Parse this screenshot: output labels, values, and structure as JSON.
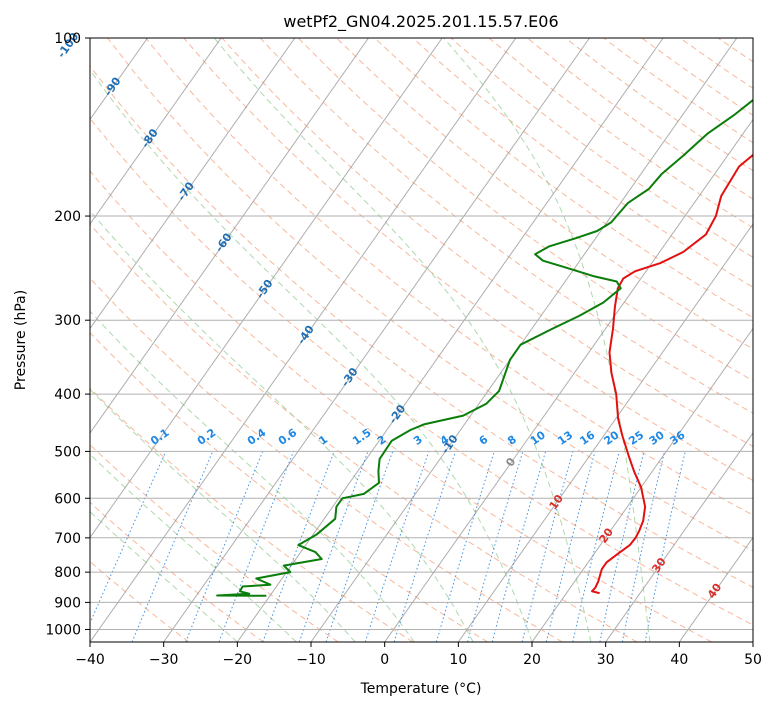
{
  "chart_data": {
    "type": "line",
    "title": "wetPf2_GN04.2025.201.15.57.E06",
    "xlabel": "Temperature (°C)",
    "ylabel": "Pressure (hPa)",
    "xlim": [
      -40,
      50
    ],
    "ylim": [
      1050,
      100
    ],
    "y_scale": "log",
    "grid": true,
    "x_ticks": [
      -40,
      -30,
      -20,
      -10,
      0,
      10,
      20,
      30,
      40,
      50
    ],
    "y_ticks": [
      100,
      200,
      300,
      400,
      500,
      600,
      700,
      800,
      900,
      1000
    ],
    "series": [
      {
        "id": "temperature",
        "color": "#e31010",
        "points": [
          [
            24.5,
            868
          ],
          [
            23.3,
            862
          ],
          [
            23.4,
            850
          ],
          [
            23.2,
            830
          ],
          [
            22.5,
            790
          ],
          [
            22.5,
            770
          ],
          [
            23.2,
            745
          ],
          [
            24,
            720
          ],
          [
            24.1,
            700
          ],
          [
            23.9,
            680
          ],
          [
            23.5,
            655
          ],
          [
            22.4,
            620
          ],
          [
            20,
            575
          ],
          [
            17.5,
            540
          ],
          [
            15.4,
            510
          ],
          [
            12.5,
            470
          ],
          [
            10.3,
            440
          ],
          [
            7.7,
            400
          ],
          [
            5,
            368
          ],
          [
            2.8,
            340
          ],
          [
            1,
            310
          ],
          [
            -0.8,
            285
          ],
          [
            -2.2,
            265
          ],
          [
            -2.4,
            255
          ],
          [
            -1.5,
            248
          ],
          [
            1.2,
            240
          ],
          [
            3.2,
            230
          ],
          [
            4.6,
            215
          ],
          [
            4.2,
            200
          ],
          [
            3,
            185
          ],
          [
            2.6,
            165
          ],
          [
            4,
            152
          ],
          [
            7,
            140
          ],
          [
            9,
            130
          ],
          [
            10.2,
            120
          ],
          [
            9.6,
            113
          ],
          [
            9.3,
            108
          ],
          [
            10.5,
            104
          ],
          [
            12.8,
            100
          ]
        ]
      },
      {
        "id": "dewpoint",
        "color": "#0a7d0a",
        "points": [
          [
            -20.5,
            877
          ],
          [
            -27.2,
            876
          ],
          [
            -23,
            870
          ],
          [
            -24.5,
            862
          ],
          [
            -24.6,
            846
          ],
          [
            -21,
            840
          ],
          [
            -23.5,
            820
          ],
          [
            -19.5,
            800
          ],
          [
            -21,
            780
          ],
          [
            -16.5,
            760
          ],
          [
            -18,
            740
          ],
          [
            -21,
            720
          ],
          [
            -19.5,
            690
          ],
          [
            -18.5,
            650
          ],
          [
            -19.5,
            620
          ],
          [
            -19.5,
            600
          ],
          [
            -17,
            590
          ],
          [
            -16,
            565
          ],
          [
            -17.2,
            540
          ],
          [
            -18.2,
            515
          ],
          [
            -18.3,
            480
          ],
          [
            -16.8,
            460
          ],
          [
            -15.5,
            450
          ],
          [
            -11,
            435
          ],
          [
            -9,
            415
          ],
          [
            -8.5,
            395
          ],
          [
            -9.3,
            370
          ],
          [
            -10,
            350
          ],
          [
            -10,
            330
          ],
          [
            -7.2,
            310
          ],
          [
            -4.8,
            295
          ],
          [
            -2.8,
            280
          ],
          [
            -1.8,
            265
          ],
          [
            -3,
            258
          ],
          [
            -6.5,
            253
          ],
          [
            -11.5,
            244
          ],
          [
            -15,
            238
          ],
          [
            -16.7,
            232
          ],
          [
            -15.5,
            225
          ],
          [
            -12.7,
            218
          ],
          [
            -10.5,
            212
          ],
          [
            -9.4,
            205
          ],
          [
            -9,
            190
          ],
          [
            -7.5,
            180
          ],
          [
            -7.2,
            170
          ],
          [
            -6,
            158
          ],
          [
            -4.8,
            145
          ],
          [
            -3,
            135
          ],
          [
            -1.5,
            125
          ],
          [
            0,
            116
          ],
          [
            1.5,
            108
          ],
          [
            2.4,
            103
          ],
          [
            3,
            100
          ]
        ]
      }
    ],
    "isotherm_labels": [
      "-100",
      "-90",
      "-80",
      "-70",
      "-60",
      "-50",
      "-40",
      "-30",
      "-20",
      "-10",
      "0",
      "10",
      "20",
      "30",
      "40"
    ],
    "mixing_ratio_labels": [
      "0.1",
      "0.2",
      "0.4",
      "0.6",
      "1",
      "1.5",
      "2",
      "3",
      "4",
      "6",
      "8",
      "10",
      "13",
      "16",
      "20",
      "25",
      "30",
      "36"
    ],
    "colors": {
      "grid": "#b0b0b0",
      "isotherm": "#9a9a9a",
      "dry_adiabat": "#f4a07a",
      "moist_adiabat": "#8bc98b",
      "mixing_ratio": "#1e7fe0",
      "isotherm_label_cold": "#1f6fb4",
      "isotherm_label_warm": "#d9302a",
      "zero_label": "#8a8a8a",
      "mixing_label": "#1e88e5"
    }
  }
}
